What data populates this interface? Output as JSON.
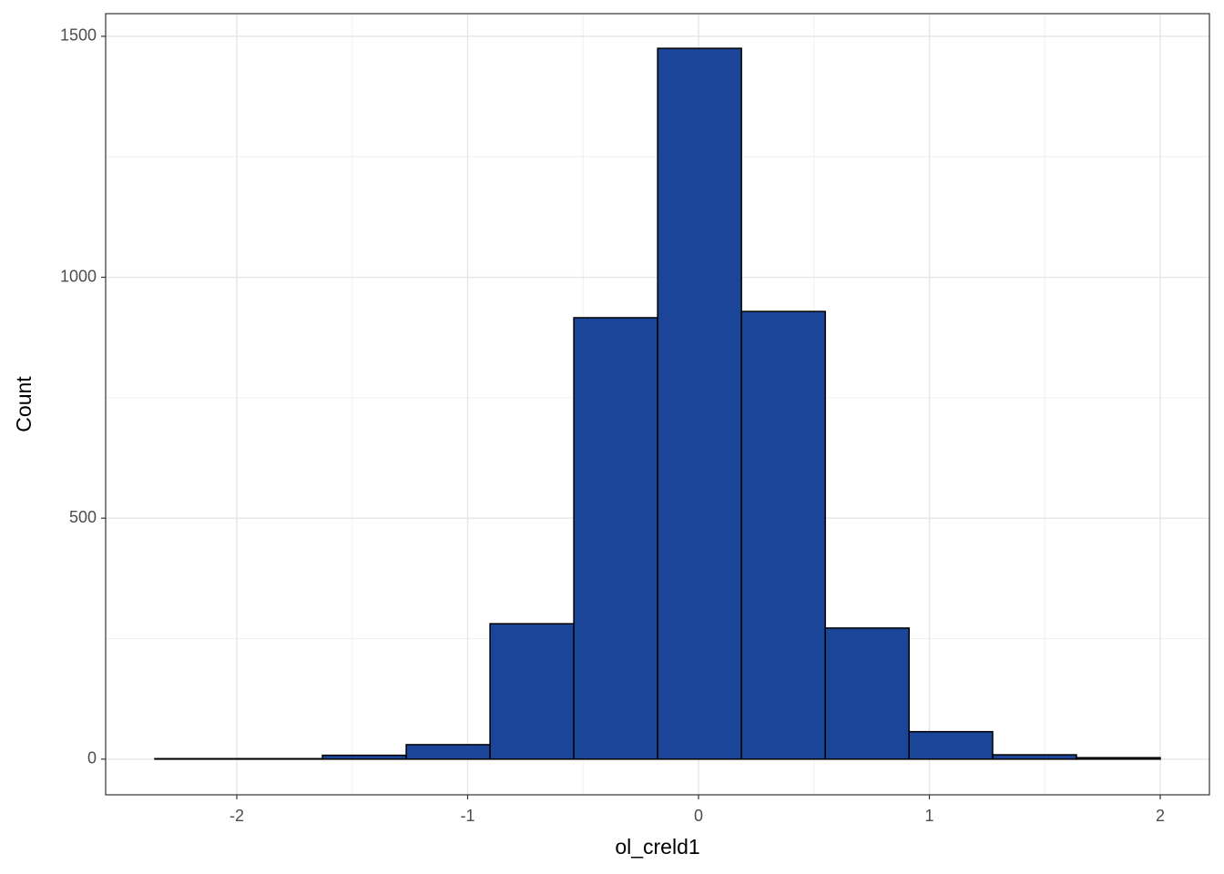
{
  "chart_data": {
    "type": "histogram",
    "x_label": "ol_creld1",
    "y_label": "Count",
    "bins": [
      -2.355,
      -1.992,
      -1.629,
      -1.266,
      -0.903,
      -0.54,
      -0.177,
      0.186,
      0.549,
      0.912,
      1.274,
      1.637,
      2.0
    ],
    "values": [
      1,
      1,
      8,
      30,
      281,
      916,
      1475,
      929,
      272,
      57,
      9,
      3
    ],
    "color": "#1a4599",
    "edge_color": "#000000",
    "xlim": [
      -2.568,
      2.213
    ],
    "ylim": [
      -74,
      1547
    ],
    "xticks": [
      -2,
      -1,
      0,
      1,
      2
    ],
    "yticks": [
      0,
      500,
      1000,
      1500
    ],
    "grid": true
  }
}
